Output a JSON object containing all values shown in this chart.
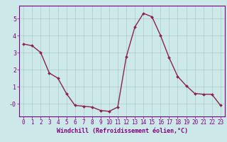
{
  "hours": [
    0,
    1,
    2,
    3,
    4,
    5,
    6,
    7,
    8,
    9,
    10,
    11,
    12,
    13,
    14,
    15,
    16,
    17,
    18,
    19,
    20,
    21,
    22,
    23
  ],
  "windchill": [
    3.5,
    3.4,
    3.0,
    1.8,
    1.5,
    0.6,
    -0.1,
    -0.15,
    -0.2,
    -0.4,
    -0.45,
    -0.2,
    2.75,
    4.5,
    5.3,
    5.1,
    4.0,
    2.7,
    1.6,
    1.05,
    0.6,
    0.55,
    0.55,
    -0.1
  ],
  "line_color": "#8B2252",
  "marker": "D",
  "marker_size": 2.0,
  "bg_color": "#cce8e8",
  "grid_color": "#aacccc",
  "xlabel": "Windchill (Refroidissement éolien,°C)",
  "xlim": [
    -0.5,
    23.5
  ],
  "ylim": [
    -0.75,
    5.75
  ],
  "yticks": [
    0,
    1,
    2,
    3,
    4,
    5
  ],
  "ytick_labels": [
    "-0",
    "1",
    "2",
    "3",
    "4",
    "5"
  ],
  "xticks": [
    0,
    1,
    2,
    3,
    4,
    5,
    6,
    7,
    8,
    9,
    10,
    11,
    12,
    13,
    14,
    15,
    16,
    17,
    18,
    19,
    20,
    21,
    22,
    23
  ],
  "line_width": 1.0,
  "tick_color": "#800080",
  "label_color": "#800080",
  "spine_color": "#800080",
  "tick_fontsize": 5.5,
  "label_fontsize": 6.0
}
